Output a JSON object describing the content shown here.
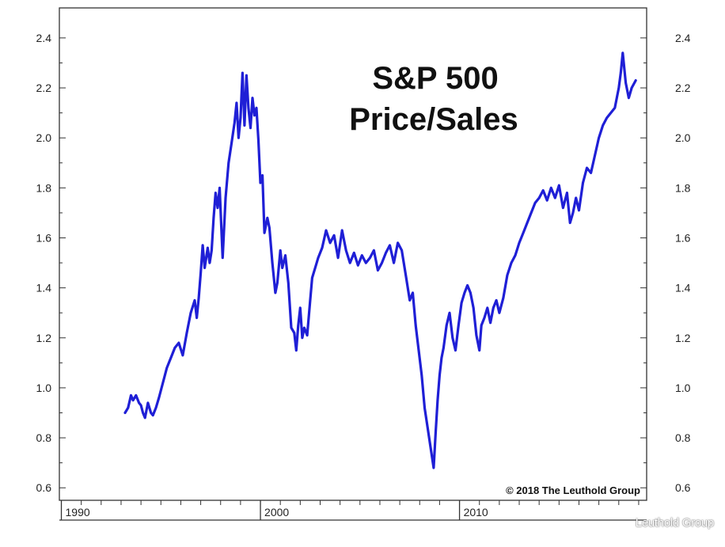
{
  "chart_data": {
    "type": "line",
    "title": "S&P 500",
    "subtitle": "Price/Sales",
    "copyright": "© 2018 The Leuthold Group",
    "x_ticks": [
      "1990",
      "2000",
      "2010"
    ],
    "y_ticks": [
      "0.6",
      "0.8",
      "1.0",
      "1.2",
      "1.4",
      "1.6",
      "1.8",
      "2.0",
      "2.2",
      "2.4"
    ],
    "xlim": [
      1989.9,
      2019.4
    ],
    "ylim": [
      0.55,
      2.52
    ],
    "line_color": "#1f1fd6",
    "grid": false,
    "series": [
      {
        "x": [
          1993.2,
          1993.35,
          1993.5,
          1993.6,
          1993.75,
          1993.9,
          1994.0,
          1994.1,
          1994.2,
          1994.35,
          1994.5,
          1994.6,
          1994.75,
          1994.9,
          1995.1,
          1995.3,
          1995.5,
          1995.7,
          1995.9,
          1996.1,
          1996.3,
          1996.5,
          1996.7,
          1996.8,
          1996.9,
          1997.0,
          1997.1,
          1997.2,
          1997.35,
          1997.45,
          1997.55,
          1997.65,
          1997.75,
          1997.85,
          1997.95,
          1998.1,
          1998.25,
          1998.4,
          1998.55,
          1998.7,
          1998.8,
          1998.9,
          1999.0,
          1999.1,
          1999.2,
          1999.3,
          1999.4,
          1999.5,
          1999.6,
          1999.7,
          1999.8,
          1999.9,
          2000.0,
          2000.1,
          2000.2,
          2000.35,
          2000.45,
          2000.6,
          2000.75,
          2000.85,
          2001.0,
          2001.1,
          2001.25,
          2001.4,
          2001.55,
          2001.7,
          2001.8,
          2001.9,
          2002.0,
          2002.1,
          2002.2,
          2002.35,
          2002.5,
          2002.6,
          2002.75,
          2002.9,
          2003.1,
          2003.3,
          2003.5,
          2003.7,
          2003.9,
          2004.1,
          2004.3,
          2004.5,
          2004.7,
          2004.9,
          2005.1,
          2005.3,
          2005.5,
          2005.7,
          2005.9,
          2006.1,
          2006.3,
          2006.5,
          2006.7,
          2006.9,
          2007.1,
          2007.3,
          2007.5,
          2007.65,
          2007.8,
          2007.95,
          2008.1,
          2008.25,
          2008.4,
          2008.55,
          2008.7,
          2008.8,
          2008.9,
          2009.0,
          2009.1,
          2009.2,
          2009.35,
          2009.5,
          2009.65,
          2009.8,
          2009.95,
          2010.1,
          2010.25,
          2010.4,
          2010.55,
          2010.7,
          2010.85,
          2011.0,
          2011.1,
          2011.25,
          2011.4,
          2011.55,
          2011.7,
          2011.85,
          2012.0,
          2012.2,
          2012.4,
          2012.6,
          2012.8,
          2013.0,
          2013.2,
          2013.4,
          2013.6,
          2013.8,
          2014.0,
          2014.2,
          2014.4,
          2014.6,
          2014.8,
          2015.0,
          2015.2,
          2015.4,
          2015.55,
          2015.7,
          2015.85,
          2016.0,
          2016.2,
          2016.4,
          2016.6,
          2016.8,
          2017.0,
          2017.2,
          2017.4,
          2017.6,
          2017.8,
          2018.0,
          2018.1,
          2018.2,
          2018.35,
          2018.5,
          2018.65,
          2018.85
        ],
        "y": [
          0.9,
          0.92,
          0.97,
          0.95,
          0.97,
          0.94,
          0.93,
          0.9,
          0.88,
          0.94,
          0.9,
          0.89,
          0.92,
          0.96,
          1.02,
          1.08,
          1.12,
          1.16,
          1.18,
          1.13,
          1.22,
          1.3,
          1.35,
          1.28,
          1.36,
          1.46,
          1.57,
          1.48,
          1.56,
          1.5,
          1.55,
          1.68,
          1.78,
          1.72,
          1.8,
          1.52,
          1.76,
          1.9,
          1.98,
          2.06,
          2.14,
          2.0,
          2.08,
          2.26,
          2.05,
          2.25,
          2.12,
          2.04,
          2.16,
          2.09,
          2.12,
          1.99,
          1.82,
          1.85,
          1.62,
          1.68,
          1.64,
          1.5,
          1.38,
          1.42,
          1.55,
          1.48,
          1.53,
          1.42,
          1.24,
          1.22,
          1.15,
          1.25,
          1.32,
          1.2,
          1.24,
          1.21,
          1.35,
          1.44,
          1.48,
          1.52,
          1.56,
          1.63,
          1.58,
          1.61,
          1.52,
          1.63,
          1.55,
          1.5,
          1.54,
          1.49,
          1.53,
          1.5,
          1.52,
          1.55,
          1.47,
          1.5,
          1.54,
          1.57,
          1.5,
          1.58,
          1.55,
          1.45,
          1.35,
          1.38,
          1.25,
          1.15,
          1.05,
          0.92,
          0.84,
          0.76,
          0.68,
          0.82,
          0.95,
          1.05,
          1.12,
          1.16,
          1.25,
          1.3,
          1.2,
          1.15,
          1.25,
          1.34,
          1.38,
          1.41,
          1.38,
          1.32,
          1.21,
          1.15,
          1.25,
          1.28,
          1.32,
          1.26,
          1.32,
          1.35,
          1.3,
          1.36,
          1.45,
          1.5,
          1.53,
          1.58,
          1.62,
          1.66,
          1.7,
          1.74,
          1.76,
          1.79,
          1.75,
          1.8,
          1.76,
          1.81,
          1.72,
          1.78,
          1.66,
          1.7,
          1.76,
          1.71,
          1.82,
          1.88,
          1.86,
          1.93,
          2.0,
          2.05,
          2.08,
          2.1,
          2.12,
          2.2,
          2.26,
          2.34,
          2.22,
          2.16,
          2.2,
          2.23
        ]
      }
    ]
  },
  "watermark": "Leuthold Group"
}
